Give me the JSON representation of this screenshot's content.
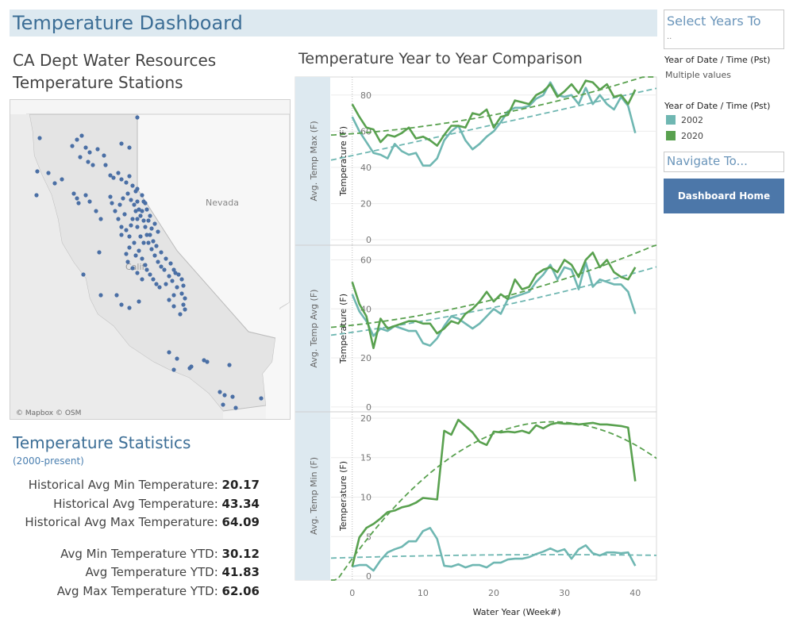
{
  "dashboard_title": "Temperature Dashboard",
  "map": {
    "title_line1": "CA Dept Water Resources",
    "title_line2": "Temperature Stations",
    "label_nevada": "Nevada",
    "label_california": "Calif",
    "attribution": "© Mapbox © OSM",
    "station_color": "#4a6fa5"
  },
  "stats": {
    "title": "Temperature Statistics",
    "subtitle": "(2000-present)",
    "rows": [
      {
        "label": "Historical Avg Min Temperature:",
        "value": "20.17"
      },
      {
        "label": "Historical Avg Temperature:",
        "value": "43.34"
      },
      {
        "label": "Historical Avg Max Temperature:",
        "value": "64.09"
      },
      {
        "label": "Avg Min Temperature YTD:",
        "value": "30.12"
      },
      {
        "label": "Avg Temperature YTD:",
        "value": "41.83"
      },
      {
        "label": "Avg Max Temperature YTD:",
        "value": "62.06"
      }
    ]
  },
  "sidebar": {
    "select_title": "Select Years To",
    "select_overflow": "..",
    "filter_label": "Year of Date / Time (Pst)",
    "filter_value": "Multiple values",
    "legend_label": "Year of Date / Time (Pst)",
    "legend_items": [
      {
        "name": "2002",
        "color": "#6fb7b2"
      },
      {
        "name": "2020",
        "color": "#59a14f"
      }
    ],
    "navigate_title": "Navigate To...",
    "home_button": "Dashboard Home"
  },
  "chart_title": "Temperature Year to Year Comparison",
  "chart_data": {
    "type": "line",
    "xlabel": "Water Year (Week#)",
    "x_ticks": [
      0,
      10,
      20,
      30,
      40
    ],
    "xlim": [
      -3,
      43
    ],
    "series_names": [
      "2002",
      "2020"
    ],
    "series_colors": [
      "#6fb7b2",
      "#59a14f"
    ],
    "trend_lines": true,
    "panels": [
      {
        "row_label": "Avg. Temp Max (F)",
        "ylabel": "Temperature (F)",
        "y_ticks": [
          0,
          20,
          40,
          60,
          80
        ],
        "ylim": [
          -3,
          90
        ],
        "series": [
          {
            "name": "2002",
            "x": [
              0,
              1,
              2,
              3,
              4,
              5,
              6,
              7,
              8,
              9,
              10,
              11,
              12,
              13,
              14,
              15,
              16,
              17,
              18,
              19,
              20,
              21,
              22,
              23,
              24,
              25,
              26,
              27,
              28,
              29,
              30,
              31,
              32,
              33,
              34,
              35,
              36,
              37,
              38,
              39,
              40
            ],
            "values": [
              68,
              60,
              54,
              48,
              47,
              45,
              53,
              49,
              47,
              48,
              41,
              41,
              45,
              55,
              60,
              63,
              55,
              50,
              53,
              57,
              60,
              65,
              71,
              73,
              73,
              74,
              78,
              80,
              87,
              80,
              79,
              80,
              75,
              84,
              75,
              80,
              75,
              72,
              79,
              74,
              59
            ]
          },
          {
            "name": "2020",
            "x": [
              0,
              1,
              2,
              3,
              4,
              5,
              6,
              7,
              8,
              9,
              10,
              11,
              12,
              13,
              14,
              15,
              16,
              17,
              18,
              19,
              20,
              21,
              22,
              23,
              24,
              25,
              26,
              27,
              28,
              29,
              30,
              31,
              32,
              33,
              34,
              35,
              36,
              37,
              38,
              39,
              40
            ],
            "values": [
              75,
              68,
              62,
              61,
              54,
              58,
              57,
              59,
              62,
              56,
              57,
              55,
              52,
              58,
              63,
              63,
              62,
              70,
              69,
              72,
              62,
              68,
              69,
              77,
              76,
              75,
              80,
              82,
              86,
              79,
              82,
              86,
              81,
              88,
              87,
              83,
              86,
              79,
              80,
              75,
              83
            ]
          }
        ]
      },
      {
        "row_label": "Avg. Temp Avg (F)",
        "ylabel": "Temperature (F)",
        "y_ticks": [
          0,
          20,
          40,
          60
        ],
        "ylim": [
          -2,
          66
        ],
        "series": [
          {
            "name": "2002",
            "x": [
              0,
              1,
              2,
              3,
              4,
              5,
              6,
              7,
              8,
              9,
              10,
              11,
              12,
              13,
              14,
              15,
              16,
              17,
              18,
              19,
              20,
              21,
              22,
              23,
              24,
              25,
              26,
              27,
              28,
              29,
              30,
              31,
              32,
              33,
              34,
              35,
              36,
              37,
              38,
              39,
              40
            ],
            "values": [
              46,
              39,
              35,
              29,
              32,
              31,
              33,
              32,
              31,
              31,
              26,
              25,
              28,
              33,
              37,
              36,
              34,
              32,
              34,
              37,
              40,
              38,
              44,
              45,
              46,
              47,
              51,
              54,
              58,
              52,
              57,
              56,
              48,
              59,
              49,
              52,
              51,
              50,
              50,
              47,
              38
            ]
          },
          {
            "name": "2020",
            "x": [
              0,
              1,
              2,
              3,
              4,
              5,
              6,
              7,
              8,
              9,
              10,
              11,
              12,
              13,
              14,
              15,
              16,
              17,
              18,
              19,
              20,
              21,
              22,
              23,
              24,
              25,
              26,
              27,
              28,
              29,
              30,
              31,
              32,
              33,
              34,
              35,
              36,
              37,
              38,
              39,
              40
            ],
            "values": [
              51,
              42,
              37,
              24,
              36,
              32,
              33,
              34,
              35,
              35,
              34,
              34,
              30,
              32,
              35,
              34,
              38,
              40,
              43,
              47,
              43,
              46,
              44,
              52,
              48,
              49,
              54,
              56,
              57,
              55,
              60,
              58,
              53,
              60,
              63,
              57,
              60,
              55,
              53,
              52,
              57
            ]
          }
        ]
      },
      {
        "row_label": "Avg. Temp Min (F)",
        "ylabel": "Temperature (F)",
        "y_ticks": [
          0,
          5,
          10,
          15,
          20
        ],
        "ylim": [
          -0.5,
          20.8
        ],
        "series": [
          {
            "name": "2002",
            "x": [
              0,
              1,
              2,
              3,
              4,
              5,
              6,
              7,
              8,
              9,
              10,
              11,
              12,
              13,
              14,
              15,
              16,
              17,
              18,
              19,
              20,
              21,
              22,
              23,
              24,
              25,
              26,
              27,
              28,
              29,
              30,
              31,
              32,
              33,
              34,
              35,
              36,
              37,
              38,
              39,
              40
            ],
            "values": [
              1.2,
              1.4,
              1.4,
              0.7,
              2.0,
              3.0,
              3.4,
              3.7,
              4.4,
              4.4,
              5.7,
              6.1,
              4.7,
              1.3,
              1.2,
              1.5,
              1.1,
              1.4,
              1.4,
              1.1,
              1.7,
              1.7,
              2.1,
              2.2,
              2.2,
              2.4,
              2.8,
              3.1,
              3.5,
              3.1,
              3.4,
              2.2,
              3.4,
              3.9,
              2.9,
              2.6,
              3.0,
              3.0,
              2.9,
              3.0,
              1.3
            ]
          },
          {
            "name": "2020",
            "x": [
              0,
              1,
              2,
              3,
              4,
              5,
              6,
              7,
              8,
              9,
              10,
              11,
              12,
              13,
              14,
              15,
              16,
              17,
              18,
              19,
              20,
              21,
              22,
              23,
              24,
              25,
              26,
              27,
              28,
              29,
              30,
              31,
              32,
              33,
              34,
              35,
              36,
              37,
              38,
              39,
              40
            ],
            "values": [
              1.2,
              4.9,
              6.1,
              6.6,
              7.3,
              8.1,
              8.3,
              8.7,
              8.9,
              9.3,
              9.9,
              9.8,
              9.7,
              18.4,
              17.9,
              19.8,
              19.0,
              18.2,
              17.0,
              16.6,
              18.3,
              18.2,
              18.3,
              18.2,
              18.4,
              18.1,
              19.1,
              18.7,
              19.2,
              19.4,
              19.3,
              19.3,
              19.2,
              19.3,
              19.4,
              19.2,
              19.2,
              19.1,
              19.0,
              18.8,
              12.0
            ]
          }
        ]
      }
    ]
  }
}
